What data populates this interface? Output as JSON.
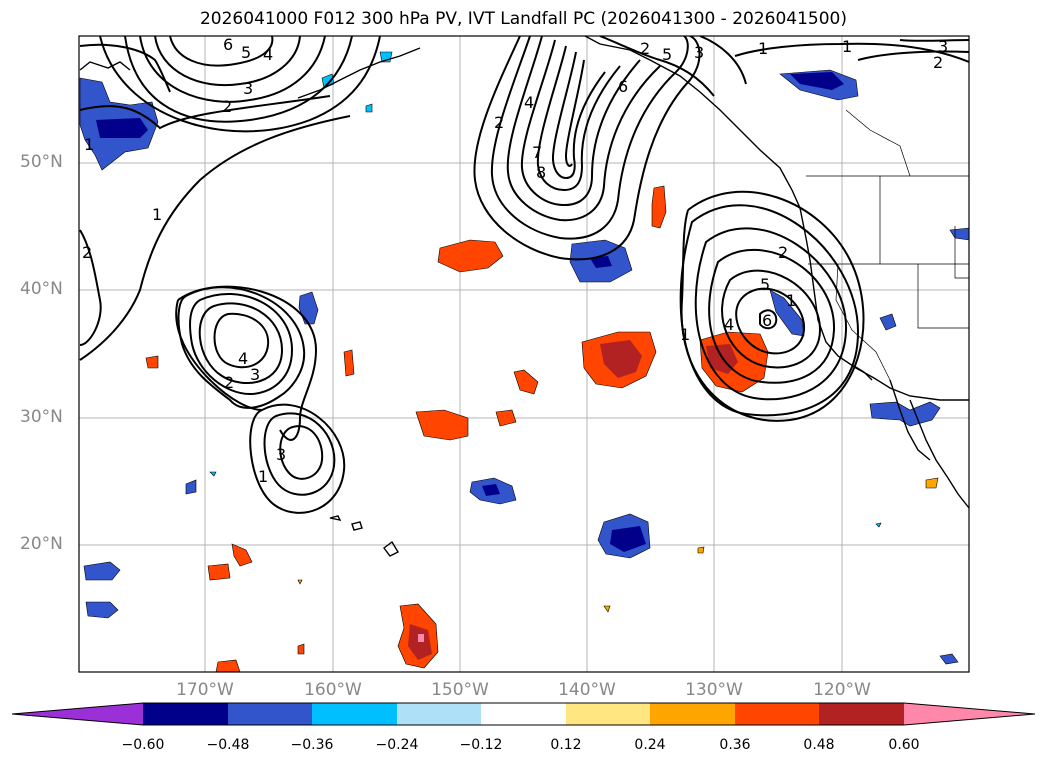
{
  "title": "2026041000 F012 300 hPa PV, IVT Landfall PC (2026041300 - 2026041500)",
  "map": {
    "lat_labels": [
      "50°N",
      "40°N",
      "30°N",
      "20°N"
    ],
    "lon_labels": [
      "170°W",
      "160°W",
      "150°W",
      "140°W",
      "130°W",
      "120°W"
    ],
    "contour_labels": [
      "6",
      "5",
      "4",
      "3",
      "2",
      "1",
      "2",
      "1",
      "2",
      "4",
      "7",
      "8",
      "6",
      "5",
      "3",
      "2",
      "1",
      "1",
      "3",
      "2",
      "2",
      "5",
      "4",
      "6",
      "1",
      "4",
      "3",
      "2",
      "1",
      "3",
      "1"
    ]
  },
  "colorbar": {
    "ticks": [
      "−0.60",
      "−0.48",
      "−0.36",
      "−0.24",
      "−0.12",
      "0.12",
      "0.24",
      "0.36",
      "0.48",
      "0.60"
    ],
    "colors": [
      "#9b30d9",
      "#00008b",
      "#3355cc",
      "#00bfff",
      "#aee0f7",
      "#ffffff",
      "#ffe680",
      "#ffa500",
      "#ff4500",
      "#b22222",
      "#ff88aa"
    ]
  }
}
